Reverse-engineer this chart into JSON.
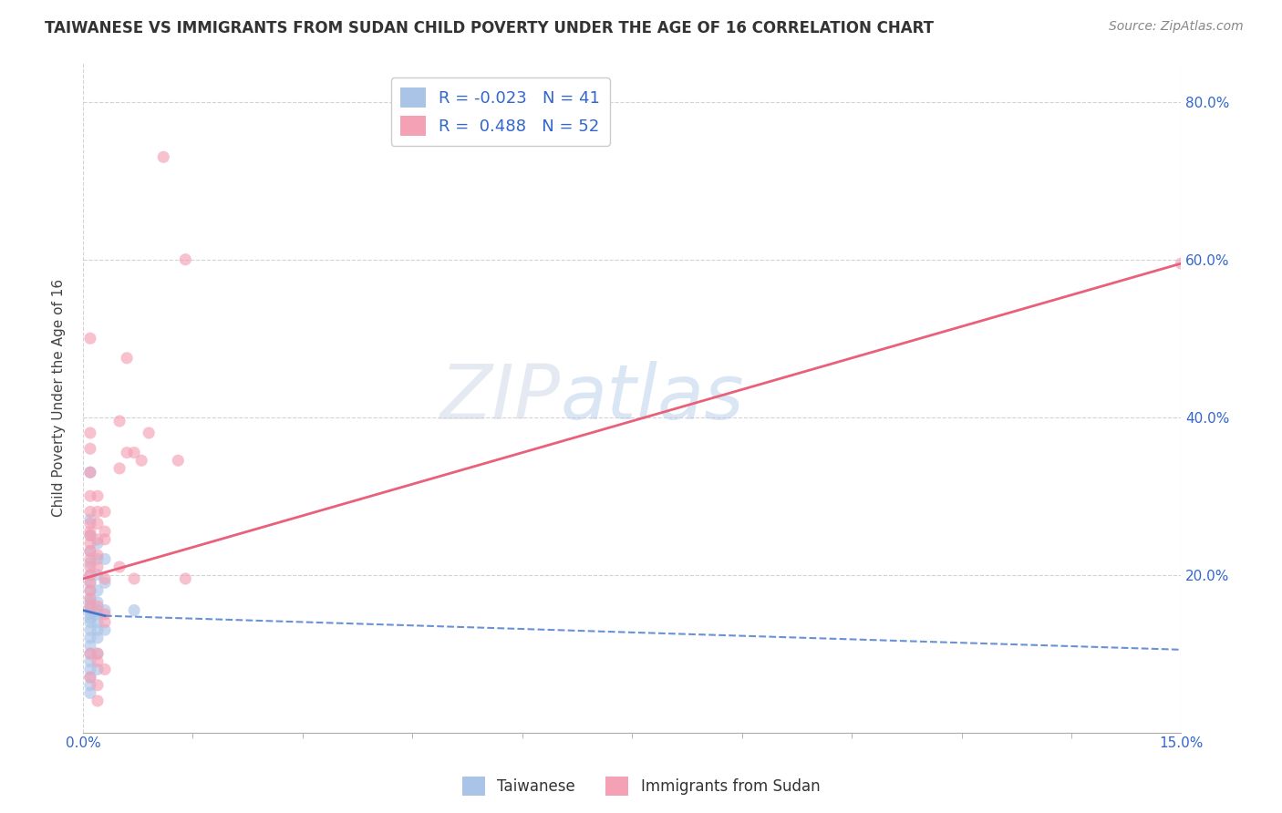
{
  "title": "TAIWANESE VS IMMIGRANTS FROM SUDAN CHILD POVERTY UNDER THE AGE OF 16 CORRELATION CHART",
  "source": "Source: ZipAtlas.com",
  "ylabel": "Child Poverty Under the Age of 16",
  "xlim": [
    0.0,
    0.15
  ],
  "ylim": [
    0.0,
    0.85
  ],
  "background_color": "#ffffff",
  "grid_color": "#c8c8c8",
  "watermark_text": "ZIPatlas",
  "legend": {
    "taiwanese": {
      "R": -0.023,
      "N": 41,
      "color": "#aac4e8"
    },
    "sudan": {
      "R": 0.488,
      "N": 52,
      "color": "#f4a0b5"
    }
  },
  "taiwanese_points": [
    [
      0.001,
      0.33
    ],
    [
      0.001,
      0.27
    ],
    [
      0.001,
      0.25
    ],
    [
      0.001,
      0.23
    ],
    [
      0.001,
      0.215
    ],
    [
      0.001,
      0.2
    ],
    [
      0.001,
      0.19
    ],
    [
      0.001,
      0.18
    ],
    [
      0.001,
      0.17
    ],
    [
      0.001,
      0.165
    ],
    [
      0.001,
      0.16
    ],
    [
      0.001,
      0.155
    ],
    [
      0.001,
      0.15
    ],
    [
      0.001,
      0.145
    ],
    [
      0.001,
      0.14
    ],
    [
      0.001,
      0.13
    ],
    [
      0.001,
      0.12
    ],
    [
      0.001,
      0.11
    ],
    [
      0.001,
      0.1
    ],
    [
      0.001,
      0.09
    ],
    [
      0.001,
      0.08
    ],
    [
      0.001,
      0.07
    ],
    [
      0.001,
      0.06
    ],
    [
      0.001,
      0.05
    ],
    [
      0.002,
      0.24
    ],
    [
      0.002,
      0.22
    ],
    [
      0.002,
      0.2
    ],
    [
      0.002,
      0.18
    ],
    [
      0.002,
      0.165
    ],
    [
      0.002,
      0.155
    ],
    [
      0.002,
      0.15
    ],
    [
      0.002,
      0.14
    ],
    [
      0.002,
      0.13
    ],
    [
      0.002,
      0.12
    ],
    [
      0.002,
      0.1
    ],
    [
      0.002,
      0.08
    ],
    [
      0.003,
      0.22
    ],
    [
      0.003,
      0.19
    ],
    [
      0.003,
      0.155
    ],
    [
      0.003,
      0.13
    ],
    [
      0.007,
      0.155
    ]
  ],
  "sudan_points": [
    [
      0.001,
      0.5
    ],
    [
      0.001,
      0.38
    ],
    [
      0.001,
      0.36
    ],
    [
      0.001,
      0.33
    ],
    [
      0.001,
      0.3
    ],
    [
      0.001,
      0.28
    ],
    [
      0.001,
      0.265
    ],
    [
      0.001,
      0.255
    ],
    [
      0.001,
      0.25
    ],
    [
      0.001,
      0.24
    ],
    [
      0.001,
      0.23
    ],
    [
      0.001,
      0.22
    ],
    [
      0.001,
      0.21
    ],
    [
      0.001,
      0.2
    ],
    [
      0.001,
      0.19
    ],
    [
      0.001,
      0.18
    ],
    [
      0.001,
      0.17
    ],
    [
      0.001,
      0.16
    ],
    [
      0.001,
      0.1
    ],
    [
      0.001,
      0.07
    ],
    [
      0.002,
      0.3
    ],
    [
      0.002,
      0.28
    ],
    [
      0.002,
      0.265
    ],
    [
      0.002,
      0.245
    ],
    [
      0.002,
      0.225
    ],
    [
      0.002,
      0.21
    ],
    [
      0.002,
      0.16
    ],
    [
      0.002,
      0.1
    ],
    [
      0.002,
      0.09
    ],
    [
      0.002,
      0.06
    ],
    [
      0.002,
      0.04
    ],
    [
      0.003,
      0.28
    ],
    [
      0.003,
      0.255
    ],
    [
      0.003,
      0.245
    ],
    [
      0.003,
      0.195
    ],
    [
      0.003,
      0.15
    ],
    [
      0.003,
      0.14
    ],
    [
      0.003,
      0.08
    ],
    [
      0.005,
      0.395
    ],
    [
      0.005,
      0.335
    ],
    [
      0.005,
      0.21
    ],
    [
      0.006,
      0.475
    ],
    [
      0.006,
      0.355
    ],
    [
      0.007,
      0.355
    ],
    [
      0.007,
      0.195
    ],
    [
      0.008,
      0.345
    ],
    [
      0.009,
      0.38
    ],
    [
      0.011,
      0.73
    ],
    [
      0.013,
      0.345
    ],
    [
      0.014,
      0.6
    ],
    [
      0.014,
      0.195
    ],
    [
      0.15,
      0.595
    ]
  ],
  "taiwanese_line_solid": {
    "x": [
      0.0,
      0.003
    ],
    "y": [
      0.155,
      0.148
    ]
  },
  "taiwanese_line_dashed": {
    "x": [
      0.003,
      0.15
    ],
    "y": [
      0.148,
      0.105
    ]
  },
  "sudan_line": {
    "x": [
      0.0,
      0.15
    ],
    "y": [
      0.195,
      0.595
    ]
  },
  "dot_size": 90,
  "dot_alpha": 0.65,
  "line_taiwanese_color": "#4477cc",
  "line_sudan_color": "#e8607a",
  "title_fontsize": 12,
  "axis_label_fontsize": 11,
  "tick_fontsize": 11,
  "source_fontsize": 10
}
